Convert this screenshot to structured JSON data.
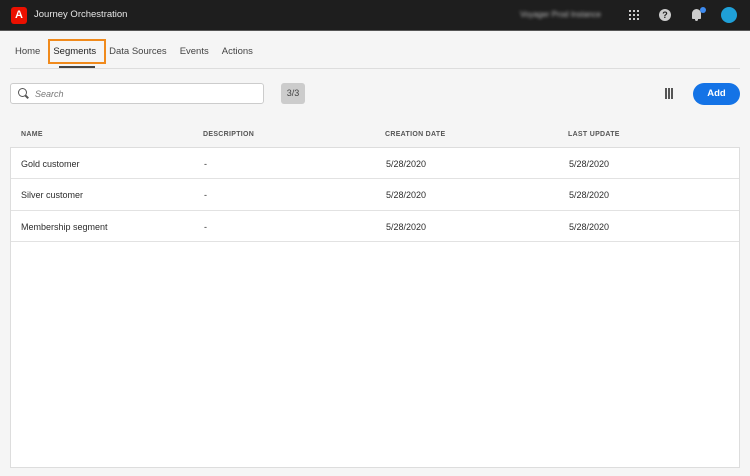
{
  "app": {
    "logo": "A",
    "title": "Journey Orchestration",
    "instance": "Voyager Prod Instance",
    "icons": [
      "apps-grid-icon",
      "help-icon",
      "bell-icon",
      "avatar"
    ],
    "notification_color": "#3d8bf0"
  },
  "nav": {
    "tabs": [
      {
        "label": "Home"
      },
      {
        "label": "Segments",
        "active": true
      },
      {
        "label": "Data Sources"
      },
      {
        "label": "Events"
      },
      {
        "label": "Actions"
      }
    ],
    "highlight_color": "#f08a1c"
  },
  "toolbar": {
    "search_placeholder": "Search",
    "count": "3/3",
    "add_label": "Add",
    "accent": "#1473e6"
  },
  "table": {
    "headers": [
      "NAME",
      "DESCRIPTION",
      "CREATION DATE",
      "LAST UPDATE"
    ],
    "rows": [
      [
        "Gold customer",
        "-",
        "5/28/2020",
        "5/28/2020"
      ],
      [
        "Silver customer",
        "-",
        "5/28/2020",
        "5/28/2020"
      ],
      [
        "Membership segment",
        "-",
        "5/28/2020",
        "5/28/2020"
      ]
    ]
  }
}
